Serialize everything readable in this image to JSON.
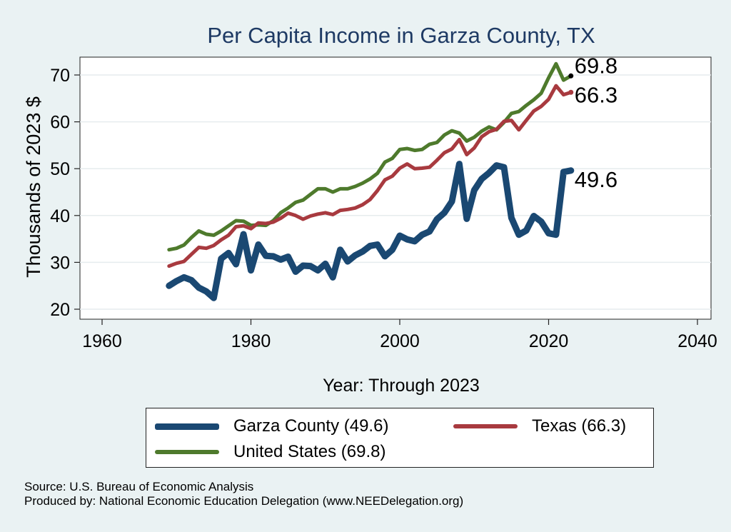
{
  "chart_data": {
    "type": "line",
    "title": "Per Capita Income in Garza County, TX",
    "xlabel": "Year: Through 2023",
    "ylabel": "Thousands of 2023 $",
    "xlim": [
      1960,
      2040
    ],
    "ylim": [
      18,
      76
    ],
    "x_ticks": [
      1960,
      1980,
      2000,
      2020,
      2040
    ],
    "y_ticks": [
      20,
      30,
      40,
      50,
      60,
      70
    ],
    "grid": true,
    "legend_position": "bottom",
    "series": [
      {
        "name": "Garza County (49.6)",
        "color": "#1a4872",
        "end_label": "49.6",
        "points": [
          [
            1969,
            25.0
          ],
          [
            1970,
            26.0
          ],
          [
            1971,
            26.8
          ],
          [
            1972,
            26.2
          ],
          [
            1973,
            24.6
          ],
          [
            1974,
            23.8
          ],
          [
            1975,
            22.4
          ],
          [
            1976,
            30.8
          ],
          [
            1977,
            32.0
          ],
          [
            1978,
            29.6
          ],
          [
            1979,
            36.0
          ],
          [
            1980,
            28.3
          ],
          [
            1981,
            33.8
          ],
          [
            1982,
            31.4
          ],
          [
            1983,
            31.3
          ],
          [
            1984,
            30.6
          ],
          [
            1985,
            31.2
          ],
          [
            1986,
            28.0
          ],
          [
            1987,
            29.3
          ],
          [
            1988,
            29.2
          ],
          [
            1989,
            28.3
          ],
          [
            1990,
            29.7
          ],
          [
            1991,
            26.8
          ],
          [
            1992,
            32.7
          ],
          [
            1993,
            30.2
          ],
          [
            1994,
            31.5
          ],
          [
            1995,
            32.3
          ],
          [
            1996,
            33.5
          ],
          [
            1997,
            33.8
          ],
          [
            1998,
            31.3
          ],
          [
            1999,
            32.7
          ],
          [
            2000,
            35.7
          ],
          [
            2001,
            34.9
          ],
          [
            2002,
            34.5
          ],
          [
            2003,
            35.9
          ],
          [
            2004,
            36.6
          ],
          [
            2005,
            39.2
          ],
          [
            2006,
            40.6
          ],
          [
            2007,
            43.0
          ],
          [
            2008,
            51.0
          ],
          [
            2009,
            39.3
          ],
          [
            2010,
            45.4
          ],
          [
            2011,
            47.8
          ],
          [
            2012,
            49.1
          ],
          [
            2013,
            50.7
          ],
          [
            2014,
            50.3
          ],
          [
            2015,
            39.5
          ],
          [
            2016,
            35.9
          ],
          [
            2017,
            36.8
          ],
          [
            2018,
            39.9
          ],
          [
            2019,
            38.7
          ],
          [
            2020,
            36.2
          ],
          [
            2021,
            35.9
          ],
          [
            2022,
            49.3
          ],
          [
            2023,
            49.6
          ]
        ]
      },
      {
        "name": "Texas (66.3)",
        "color": "#a83a3f",
        "end_label": "66.3",
        "points": [
          [
            1969,
            29.2
          ],
          [
            1970,
            29.8
          ],
          [
            1971,
            30.2
          ],
          [
            1972,
            31.7
          ],
          [
            1973,
            33.2
          ],
          [
            1974,
            33.0
          ],
          [
            1975,
            33.6
          ],
          [
            1976,
            34.8
          ],
          [
            1977,
            35.8
          ],
          [
            1978,
            37.6
          ],
          [
            1979,
            37.8
          ],
          [
            1980,
            37.2
          ],
          [
            1981,
            38.4
          ],
          [
            1982,
            38.3
          ],
          [
            1983,
            38.6
          ],
          [
            1984,
            39.4
          ],
          [
            1985,
            40.5
          ],
          [
            1986,
            40.0
          ],
          [
            1987,
            39.2
          ],
          [
            1988,
            39.9
          ],
          [
            1989,
            40.3
          ],
          [
            1990,
            40.6
          ],
          [
            1991,
            40.2
          ],
          [
            1992,
            41.1
          ],
          [
            1993,
            41.3
          ],
          [
            1994,
            41.6
          ],
          [
            1995,
            42.3
          ],
          [
            1996,
            43.4
          ],
          [
            1997,
            45.3
          ],
          [
            1998,
            47.6
          ],
          [
            1999,
            48.4
          ],
          [
            2000,
            50.1
          ],
          [
            2001,
            51.0
          ],
          [
            2002,
            50.0
          ],
          [
            2003,
            50.1
          ],
          [
            2004,
            50.3
          ],
          [
            2005,
            51.8
          ],
          [
            2006,
            53.4
          ],
          [
            2007,
            54.2
          ],
          [
            2008,
            56.2
          ],
          [
            2009,
            53.0
          ],
          [
            2010,
            54.4
          ],
          [
            2011,
            56.8
          ],
          [
            2012,
            57.9
          ],
          [
            2013,
            58.4
          ],
          [
            2014,
            60.1
          ],
          [
            2015,
            60.3
          ],
          [
            2016,
            58.3
          ],
          [
            2017,
            60.3
          ],
          [
            2018,
            62.3
          ],
          [
            2019,
            63.3
          ],
          [
            2020,
            64.8
          ],
          [
            2021,
            67.7
          ],
          [
            2022,
            65.8
          ],
          [
            2023,
            66.3
          ]
        ]
      },
      {
        "name": "United States (69.8)",
        "color": "#4e7a2c",
        "end_label": "69.8",
        "points": [
          [
            1969,
            32.7
          ],
          [
            1970,
            33.0
          ],
          [
            1971,
            33.7
          ],
          [
            1972,
            35.3
          ],
          [
            1973,
            36.7
          ],
          [
            1974,
            36.0
          ],
          [
            1975,
            35.8
          ],
          [
            1976,
            36.7
          ],
          [
            1977,
            37.8
          ],
          [
            1978,
            38.9
          ],
          [
            1979,
            38.8
          ],
          [
            1980,
            37.9
          ],
          [
            1981,
            38.0
          ],
          [
            1982,
            37.9
          ],
          [
            1983,
            38.9
          ],
          [
            1984,
            40.6
          ],
          [
            1985,
            41.6
          ],
          [
            1986,
            42.8
          ],
          [
            1987,
            43.3
          ],
          [
            1988,
            44.5
          ],
          [
            1989,
            45.7
          ],
          [
            1990,
            45.7
          ],
          [
            1991,
            45.0
          ],
          [
            1992,
            45.7
          ],
          [
            1993,
            45.7
          ],
          [
            1994,
            46.2
          ],
          [
            1995,
            46.9
          ],
          [
            1996,
            47.8
          ],
          [
            1997,
            49.0
          ],
          [
            1998,
            51.4
          ],
          [
            1999,
            52.2
          ],
          [
            2000,
            54.1
          ],
          [
            2001,
            54.3
          ],
          [
            2002,
            53.9
          ],
          [
            2003,
            54.1
          ],
          [
            2004,
            55.2
          ],
          [
            2005,
            55.6
          ],
          [
            2006,
            57.2
          ],
          [
            2007,
            58.1
          ],
          [
            2008,
            57.6
          ],
          [
            2009,
            55.9
          ],
          [
            2010,
            56.7
          ],
          [
            2011,
            58.0
          ],
          [
            2012,
            58.9
          ],
          [
            2013,
            58.3
          ],
          [
            2014,
            59.9
          ],
          [
            2015,
            61.8
          ],
          [
            2016,
            62.2
          ],
          [
            2017,
            63.5
          ],
          [
            2018,
            64.7
          ],
          [
            2019,
            66.1
          ],
          [
            2020,
            69.4
          ],
          [
            2021,
            72.4
          ],
          [
            2022,
            68.9
          ],
          [
            2023,
            69.8
          ]
        ]
      }
    ]
  },
  "source_text": "Source: U.S. Bureau of Economic Analysis",
  "produced_text": "Produced by: National Economic Education Delegation (www.NEEDelegation.org)"
}
